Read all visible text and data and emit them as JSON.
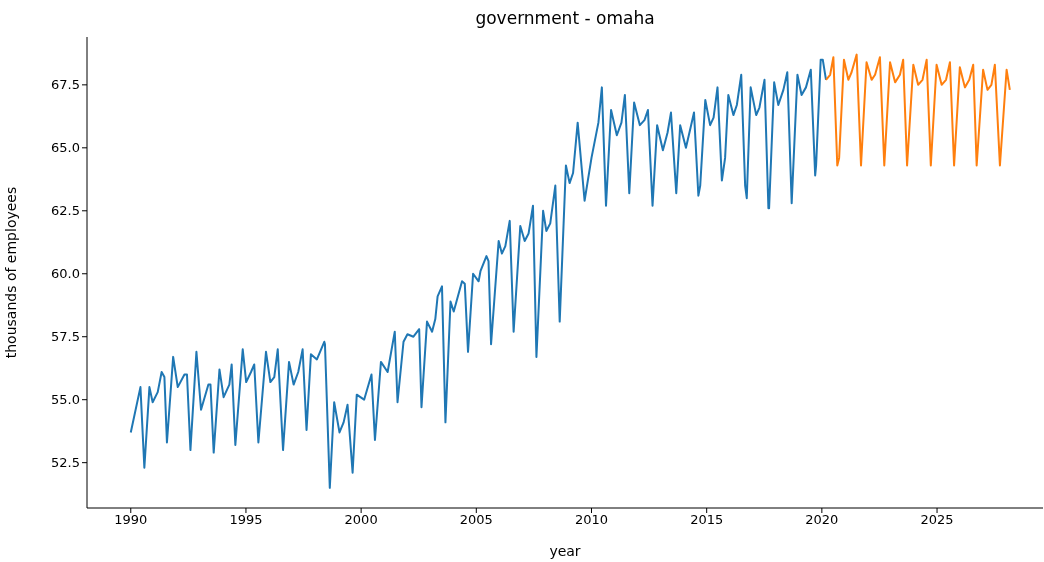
{
  "chart_data": {
    "type": "line",
    "title": "government - omaha",
    "xlabel": "year",
    "ylabel": "thousands of employees",
    "xlim": [
      1988.1,
      2029.6
    ],
    "xticks": [
      1990,
      1995,
      2000,
      2005,
      2010,
      2015,
      2020,
      2025
    ],
    "ylim": [
      50.7,
      69.4
    ],
    "yticks": [
      {
        "value": 52.5,
        "label": "52.5"
      },
      {
        "value": 55,
        "label": "55.0"
      },
      {
        "value": 57.5,
        "label": "57.5"
      },
      {
        "value": 60,
        "label": "60.0"
      },
      {
        "value": 62.5,
        "label": "62.5"
      },
      {
        "value": 65,
        "label": "65.0"
      },
      {
        "value": 67.5,
        "label": "67.5"
      }
    ],
    "grid": false,
    "marker": "none",
    "line_style": "solid",
    "series": [
      {
        "color": "#1f77b4",
        "x": [
          1990.0,
          1990.42,
          1990.59,
          1990.81,
          1990.95,
          1991.17,
          1991.34,
          1991.46,
          1991.57,
          1991.84,
          1992.04,
          1992.33,
          1992.44,
          1992.59,
          1992.85,
          1993.05,
          1993.37,
          1993.46,
          1993.6,
          1993.85,
          1994.03,
          1994.28,
          1994.38,
          1994.54,
          1994.86,
          1995.01,
          1995.22,
          1995.36,
          1995.54,
          1995.87,
          1996.06,
          1996.23,
          1996.38,
          1996.61,
          1996.87,
          1997.07,
          1997.27,
          1997.46,
          1997.63,
          1997.82,
          1998.08,
          1998.4,
          1998.43,
          1998.64,
          1998.83,
          1999.06,
          1999.24,
          1999.41,
          1999.63,
          1999.81,
          2000.13,
          2000.45,
          2000.6,
          2000.86,
          2001.15,
          2001.46,
          2001.58,
          2001.84,
          2002.01,
          2002.27,
          2002.52,
          2002.62,
          2002.86,
          2003.08,
          2003.22,
          2003.32,
          2003.51,
          2003.66,
          2003.88,
          2004.02,
          2004.38,
          2004.5,
          2004.64,
          2004.86,
          2005.1,
          2005.18,
          2005.44,
          2005.53,
          2005.64,
          2005.97,
          2006.11,
          2006.26,
          2006.45,
          2006.62,
          2006.91,
          2007.1,
          2007.27,
          2007.46,
          2007.61,
          2007.9,
          2008.04,
          2008.21,
          2008.43,
          2008.62,
          2008.89,
          2009.05,
          2009.2,
          2009.4,
          2009.7,
          2010.0,
          2010.3,
          2010.45,
          2010.63,
          2010.85,
          2011.1,
          2011.3,
          2011.45,
          2011.64,
          2011.85,
          2012.1,
          2012.3,
          2012.45,
          2012.65,
          2012.85,
          2013.1,
          2013.3,
          2013.45,
          2013.68,
          2013.85,
          2014.1,
          2014.3,
          2014.45,
          2014.64,
          2014.72,
          2014.94,
          2015.15,
          2015.3,
          2015.47,
          2015.66,
          2015.8,
          2015.94,
          2016.16,
          2016.31,
          2016.5,
          2016.67,
          2016.74,
          2016.91,
          2017.15,
          2017.29,
          2017.51,
          2017.68,
          2017.71,
          2017.93,
          2018.11,
          2018.33,
          2018.5,
          2018.69,
          2018.94,
          2019.12,
          2019.31,
          2019.52,
          2019.71,
          2019.75,
          2019.95,
          2020.04,
          2020.18
        ],
        "values": [
          53.7,
          55.5,
          52.3,
          55.5,
          54.9,
          55.3,
          56.1,
          55.9,
          53.3,
          56.7,
          55.5,
          56.0,
          56.0,
          53.0,
          56.9,
          54.6,
          55.6,
          55.6,
          52.9,
          56.2,
          55.1,
          55.6,
          56.4,
          53.2,
          57.0,
          55.7,
          56.1,
          56.4,
          53.3,
          56.9,
          55.7,
          55.9,
          57.0,
          53.0,
          56.5,
          55.6,
          56.1,
          57.0,
          53.8,
          56.8,
          56.6,
          57.3,
          57.2,
          51.5,
          54.9,
          53.7,
          54.1,
          54.8,
          52.1,
          55.2,
          55.0,
          56.0,
          53.4,
          56.5,
          56.1,
          57.7,
          54.9,
          57.3,
          57.6,
          57.5,
          57.8,
          54.7,
          58.1,
          57.7,
          58.2,
          59.1,
          59.5,
          54.1,
          58.9,
          58.5,
          59.7,
          59.6,
          56.9,
          60.0,
          59.7,
          60.1,
          60.7,
          60.5,
          57.2,
          61.3,
          60.8,
          61.1,
          62.1,
          57.7,
          61.9,
          61.3,
          61.6,
          62.7,
          56.7,
          62.5,
          61.7,
          62.0,
          63.5,
          58.1,
          64.3,
          63.6,
          64.0,
          66.0,
          62.9,
          64.6,
          66.0,
          67.4,
          62.7,
          66.5,
          65.5,
          66.0,
          67.1,
          63.2,
          66.8,
          65.9,
          66.1,
          66.5,
          62.7,
          65.9,
          64.9,
          65.6,
          66.4,
          63.2,
          65.9,
          65.0,
          65.8,
          66.4,
          63.1,
          63.5,
          66.9,
          65.9,
          66.2,
          67.4,
          63.7,
          64.6,
          67.1,
          66.3,
          66.7,
          67.9,
          63.5,
          63.0,
          67.4,
          66.3,
          66.6,
          67.7,
          62.6,
          62.6,
          67.6,
          66.7,
          67.3,
          68.0,
          62.8,
          67.9,
          67.1,
          67.4,
          68.1,
          63.9,
          64.3,
          68.5,
          68.5,
          67.7
        ]
      },
      {
        "color": "#ff7f0e",
        "x": [
          2020.18,
          2020.36,
          2020.5,
          2020.67,
          2020.75,
          2020.96,
          2021.15,
          2021.29,
          2021.51,
          2021.7,
          2021.94,
          2022.16,
          2022.31,
          2022.52,
          2022.71,
          2022.96,
          2023.18,
          2023.39,
          2023.53,
          2023.7,
          2023.97,
          2024.18,
          2024.37,
          2024.55,
          2024.73,
          2024.98,
          2025.2,
          2025.39,
          2025.56,
          2025.74,
          2025.99,
          2026.21,
          2026.4,
          2026.57,
          2026.72,
          2027.0,
          2027.19,
          2027.36,
          2027.51,
          2027.73,
          2028.02,
          2028.16
        ],
        "values": [
          67.7,
          67.9,
          68.6,
          64.3,
          64.6,
          68.5,
          67.7,
          68.0,
          68.7,
          64.3,
          68.4,
          67.7,
          67.9,
          68.6,
          64.3,
          68.4,
          67.6,
          67.9,
          68.5,
          64.3,
          68.3,
          67.5,
          67.7,
          68.5,
          64.3,
          68.3,
          67.5,
          67.7,
          68.4,
          64.3,
          68.2,
          67.4,
          67.7,
          68.3,
          64.3,
          68.1,
          67.3,
          67.5,
          68.3,
          64.3,
          68.1,
          67.3
        ]
      }
    ]
  }
}
